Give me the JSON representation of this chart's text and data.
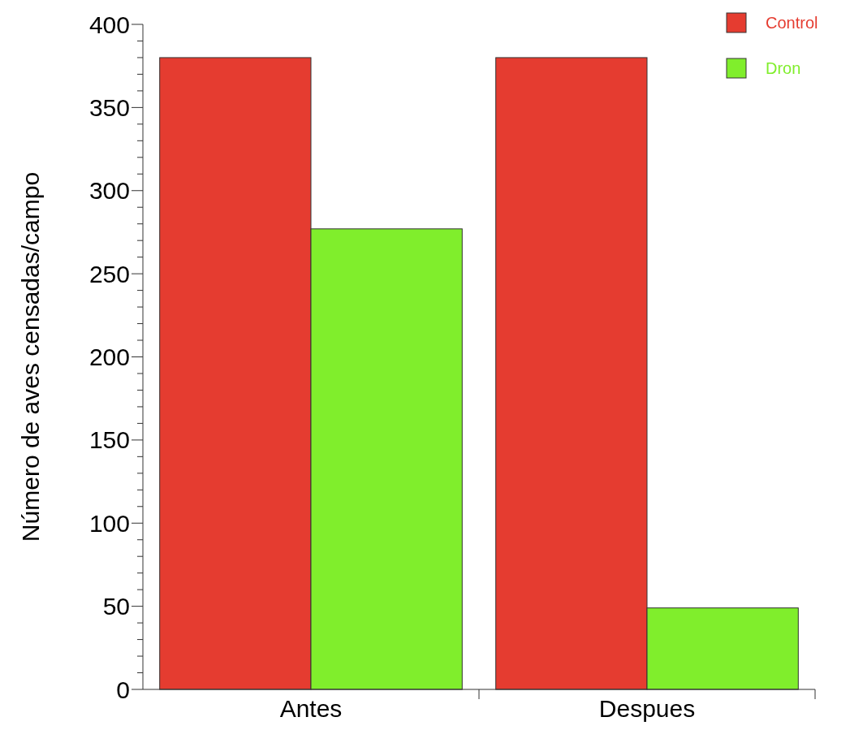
{
  "chart_data": {
    "type": "bar",
    "ylabel": "Número de aves censadas/campo",
    "categories": [
      "Antes",
      "Despues"
    ],
    "series": [
      {
        "name": "Control",
        "color": "#e53c30",
        "values": [
          380,
          380
        ]
      },
      {
        "name": "Dron",
        "color": "#80ee2c",
        "values": [
          277,
          49
        ]
      }
    ],
    "ylim": [
      0,
      400
    ],
    "yticks": [
      0,
      {
        "value": 10,
        "label": null
      },
      {
        "value": 20,
        "label": null
      },
      {
        "value": 30,
        "label": null
      },
      {
        "value": 40,
        "label": null
      },
      50,
      {
        "value": 60,
        "label": null
      },
      {
        "value": 70,
        "label": null
      },
      {
        "value": 80,
        "label": null
      },
      {
        "value": 90,
        "label": null
      },
      100,
      {
        "value": 110,
        "label": null
      },
      {
        "value": 120,
        "label": null
      },
      {
        "value": 130,
        "label": null
      },
      {
        "value": 140,
        "label": null
      },
      150,
      {
        "value": 160,
        "label": null
      },
      {
        "value": 170,
        "label": null
      },
      {
        "value": 180,
        "label": null
      },
      {
        "value": 190,
        "label": null
      },
      200,
      {
        "value": 210,
        "label": null
      },
      {
        "value": 220,
        "label": null
      },
      {
        "value": 230,
        "label": null
      },
      {
        "value": 240,
        "label": null
      },
      250,
      {
        "value": 260,
        "label": null
      },
      {
        "value": 270,
        "label": null
      },
      {
        "value": 280,
        "label": null
      },
      {
        "value": 290,
        "label": null
      },
      300,
      {
        "value": 310,
        "label": null
      },
      {
        "value": 320,
        "label": null
      },
      {
        "value": 330,
        "label": null
      },
      {
        "value": 340,
        "label": null
      },
      350,
      {
        "value": 360,
        "label": null
      },
      {
        "value": 370,
        "label": null
      },
      {
        "value": 380,
        "label": null
      },
      {
        "value": 390,
        "label": null
      },
      400
    ],
    "grid": false,
    "legend": "top right"
  }
}
